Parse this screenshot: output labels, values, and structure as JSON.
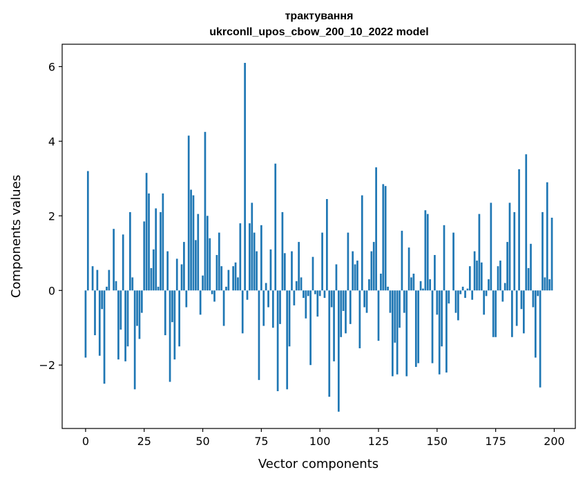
{
  "chart_data": {
    "type": "bar",
    "title_line1": "трактування",
    "title_line2": "ukrconll_upos_cbow_200_10_2022 model",
    "xlabel": "Vector components",
    "ylabel": "Components values",
    "xlim": [
      -10,
      209
    ],
    "ylim": [
      -3.7,
      6.6
    ],
    "xticks": [
      0,
      25,
      50,
      75,
      100,
      125,
      150,
      175,
      200
    ],
    "yticks": [
      -2,
      0,
      2,
      4,
      6
    ],
    "xtick_labels": [
      "0",
      "25",
      "50",
      "75",
      "100",
      "125",
      "150",
      "175",
      "200"
    ],
    "ytick_labels": [
      "−2",
      "0",
      "2",
      "4",
      "6"
    ],
    "bar_color": "#1f77b4",
    "grid": false,
    "x": [
      0,
      1,
      2,
      3,
      4,
      5,
      6,
      7,
      8,
      9,
      10,
      11,
      12,
      13,
      14,
      15,
      16,
      17,
      18,
      19,
      20,
      21,
      22,
      23,
      24,
      25,
      26,
      27,
      28,
      29,
      30,
      31,
      32,
      33,
      34,
      35,
      36,
      37,
      38,
      39,
      40,
      41,
      42,
      43,
      44,
      45,
      46,
      47,
      48,
      49,
      50,
      51,
      52,
      53,
      54,
      55,
      56,
      57,
      58,
      59,
      60,
      61,
      62,
      63,
      64,
      65,
      66,
      67,
      68,
      69,
      70,
      71,
      72,
      73,
      74,
      75,
      76,
      77,
      78,
      79,
      80,
      81,
      82,
      83,
      84,
      85,
      86,
      87,
      88,
      89,
      90,
      91,
      92,
      93,
      94,
      95,
      96,
      97,
      98,
      99,
      100,
      101,
      102,
      103,
      104,
      105,
      106,
      107,
      108,
      109,
      110,
      111,
      112,
      113,
      114,
      115,
      116,
      117,
      118,
      119,
      120,
      121,
      122,
      123,
      124,
      125,
      126,
      127,
      128,
      129,
      130,
      131,
      132,
      133,
      134,
      135,
      136,
      137,
      138,
      139,
      140,
      141,
      142,
      143,
      144,
      145,
      146,
      147,
      148,
      149,
      150,
      151,
      152,
      153,
      154,
      155,
      156,
      157,
      158,
      159,
      160,
      161,
      162,
      163,
      164,
      165,
      166,
      167,
      168,
      169,
      170,
      171,
      172,
      173,
      174,
      175,
      176,
      177,
      178,
      179,
      180,
      181,
      182,
      183,
      184,
      185,
      186,
      187,
      188,
      189,
      190,
      191,
      192,
      193,
      194,
      195,
      196,
      197,
      198,
      199
    ],
    "values": [
      -1.8,
      3.2,
      0.0,
      0.65,
      -1.2,
      0.55,
      -1.75,
      -0.5,
      -2.5,
      0.1,
      0.55,
      0.0,
      1.65,
      0.25,
      -1.85,
      -1.05,
      1.5,
      -1.9,
      -1.5,
      2.1,
      0.35,
      -2.65,
      -0.95,
      -1.3,
      -0.6,
      1.85,
      3.15,
      2.6,
      0.6,
      1.1,
      2.2,
      0.1,
      2.1,
      2.6,
      -1.2,
      1.05,
      -2.45,
      -0.85,
      -1.85,
      0.85,
      -1.5,
      0.7,
      1.3,
      -0.45,
      4.15,
      2.7,
      2.55,
      1.35,
      2.05,
      -0.65,
      0.4,
      4.25,
      2.0,
      1.4,
      -0.1,
      -0.3,
      0.95,
      1.55,
      0.65,
      -0.95,
      0.1,
      0.55,
      0.0,
      0.65,
      0.75,
      0.35,
      1.8,
      -1.15,
      6.1,
      -0.25,
      1.8,
      2.35,
      1.55,
      1.05,
      -2.4,
      1.75,
      -0.95,
      0.2,
      -0.45,
      1.1,
      -1.0,
      3.4,
      -2.7,
      -0.9,
      2.1,
      1.0,
      -2.65,
      -1.5,
      1.05,
      -0.4,
      0.25,
      1.3,
      0.35,
      -0.2,
      -0.75,
      -0.15,
      -2.0,
      0.9,
      -0.1,
      -0.7,
      -0.15,
      1.55,
      -0.2,
      2.45,
      -2.85,
      -0.45,
      -1.9,
      0.7,
      -3.25,
      -1.25,
      -0.55,
      -1.15,
      1.55,
      -0.9,
      1.05,
      0.7,
      0.8,
      -1.55,
      2.55,
      -0.45,
      -0.6,
      0.3,
      1.05,
      1.3,
      3.3,
      -1.35,
      0.45,
      2.85,
      2.8,
      0.1,
      -0.6,
      -2.3,
      -1.4,
      -2.25,
      -1.0,
      1.6,
      -0.6,
      -2.3,
      1.15,
      0.35,
      0.45,
      -2.05,
      -1.95,
      0.25,
      0.05,
      2.15,
      2.05,
      0.3,
      -1.95,
      0.95,
      -0.65,
      -2.25,
      -1.5,
      1.75,
      -2.2,
      -0.35,
      0.0,
      1.55,
      -0.6,
      -0.8,
      -0.1,
      0.1,
      -0.2,
      0.05,
      0.65,
      -0.25,
      1.05,
      0.8,
      2.05,
      0.75,
      -0.65,
      -0.15,
      0.3,
      2.35,
      -1.25,
      -1.25,
      0.65,
      0.8,
      -0.3,
      0.2,
      1.3,
      2.35,
      -1.25,
      2.1,
      -0.95,
      3.25,
      -0.5,
      -1.15,
      3.65,
      0.6,
      1.25,
      -0.45,
      -1.8,
      -0.15,
      -2.6,
      2.1,
      0.35,
      2.9,
      0.3,
      1.95
    ]
  }
}
